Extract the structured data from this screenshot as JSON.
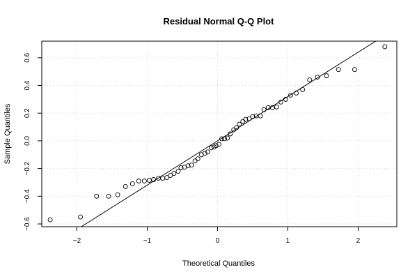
{
  "chart_data": {
    "type": "scatter",
    "title": "Residual Normal Q-Q Plot",
    "xlabel": "Theoretical Quantiles",
    "ylabel": "Sample Quantiles",
    "xlim": [
      -2.5,
      2.55
    ],
    "ylim": [
      -0.62,
      0.72
    ],
    "x_ticks": [
      -2,
      -1,
      0,
      1,
      2
    ],
    "x_tick_labels": [
      "−2",
      "−1",
      "0",
      "1",
      "2"
    ],
    "y_ticks": [
      -0.6,
      -0.4,
      -0.2,
      0.0,
      0.2,
      0.4,
      0.6
    ],
    "y_tick_labels": [
      "−0.6",
      "−0.4",
      "−0.2",
      "0.0",
      "0.2",
      "0.4",
      "0.6"
    ],
    "grid": true,
    "reference_line": {
      "intercept": 0.0,
      "slope": 0.32
    },
    "points": [
      [
        -2.38,
        -0.57
      ],
      [
        -1.95,
        -0.55
      ],
      [
        -1.72,
        -0.4
      ],
      [
        -1.55,
        -0.4
      ],
      [
        -1.42,
        -0.39
      ],
      [
        -1.31,
        -0.33
      ],
      [
        -1.21,
        -0.31
      ],
      [
        -1.12,
        -0.29
      ],
      [
        -1.04,
        -0.29
      ],
      [
        -0.97,
        -0.285
      ],
      [
        -0.91,
        -0.28
      ],
      [
        -0.84,
        -0.27
      ],
      [
        -0.78,
        -0.27
      ],
      [
        -0.72,
        -0.265
      ],
      [
        -0.67,
        -0.25
      ],
      [
        -0.62,
        -0.235
      ],
      [
        -0.56,
        -0.22
      ],
      [
        -0.52,
        -0.195
      ],
      [
        -0.47,
        -0.19
      ],
      [
        -0.42,
        -0.18
      ],
      [
        -0.37,
        -0.175
      ],
      [
        -0.32,
        -0.145
      ],
      [
        -0.28,
        -0.13
      ],
      [
        -0.23,
        -0.1
      ],
      [
        -0.18,
        -0.09
      ],
      [
        -0.14,
        -0.08
      ],
      [
        -0.09,
        -0.05
      ],
      [
        -0.05,
        -0.045
      ],
      [
        -0.02,
        -0.035
      ],
      [
        0.02,
        -0.025
      ],
      [
        0.06,
        0.015
      ],
      [
        0.1,
        0.015
      ],
      [
        0.14,
        0.02
      ],
      [
        0.18,
        0.05
      ],
      [
        0.23,
        0.08
      ],
      [
        0.27,
        0.095
      ],
      [
        0.31,
        0.12
      ],
      [
        0.36,
        0.14
      ],
      [
        0.4,
        0.155
      ],
      [
        0.45,
        0.16
      ],
      [
        0.5,
        0.175
      ],
      [
        0.55,
        0.18
      ],
      [
        0.61,
        0.18
      ],
      [
        0.66,
        0.225
      ],
      [
        0.72,
        0.24
      ],
      [
        0.78,
        0.24
      ],
      [
        0.84,
        0.245
      ],
      [
        0.9,
        0.28
      ],
      [
        0.97,
        0.3
      ],
      [
        1.04,
        0.33
      ],
      [
        1.12,
        0.345
      ],
      [
        1.21,
        0.37
      ],
      [
        1.31,
        0.44
      ],
      [
        1.42,
        0.46
      ],
      [
        1.55,
        0.47
      ],
      [
        1.72,
        0.515
      ],
      [
        1.95,
        0.515
      ],
      [
        2.38,
        0.68
      ]
    ]
  }
}
